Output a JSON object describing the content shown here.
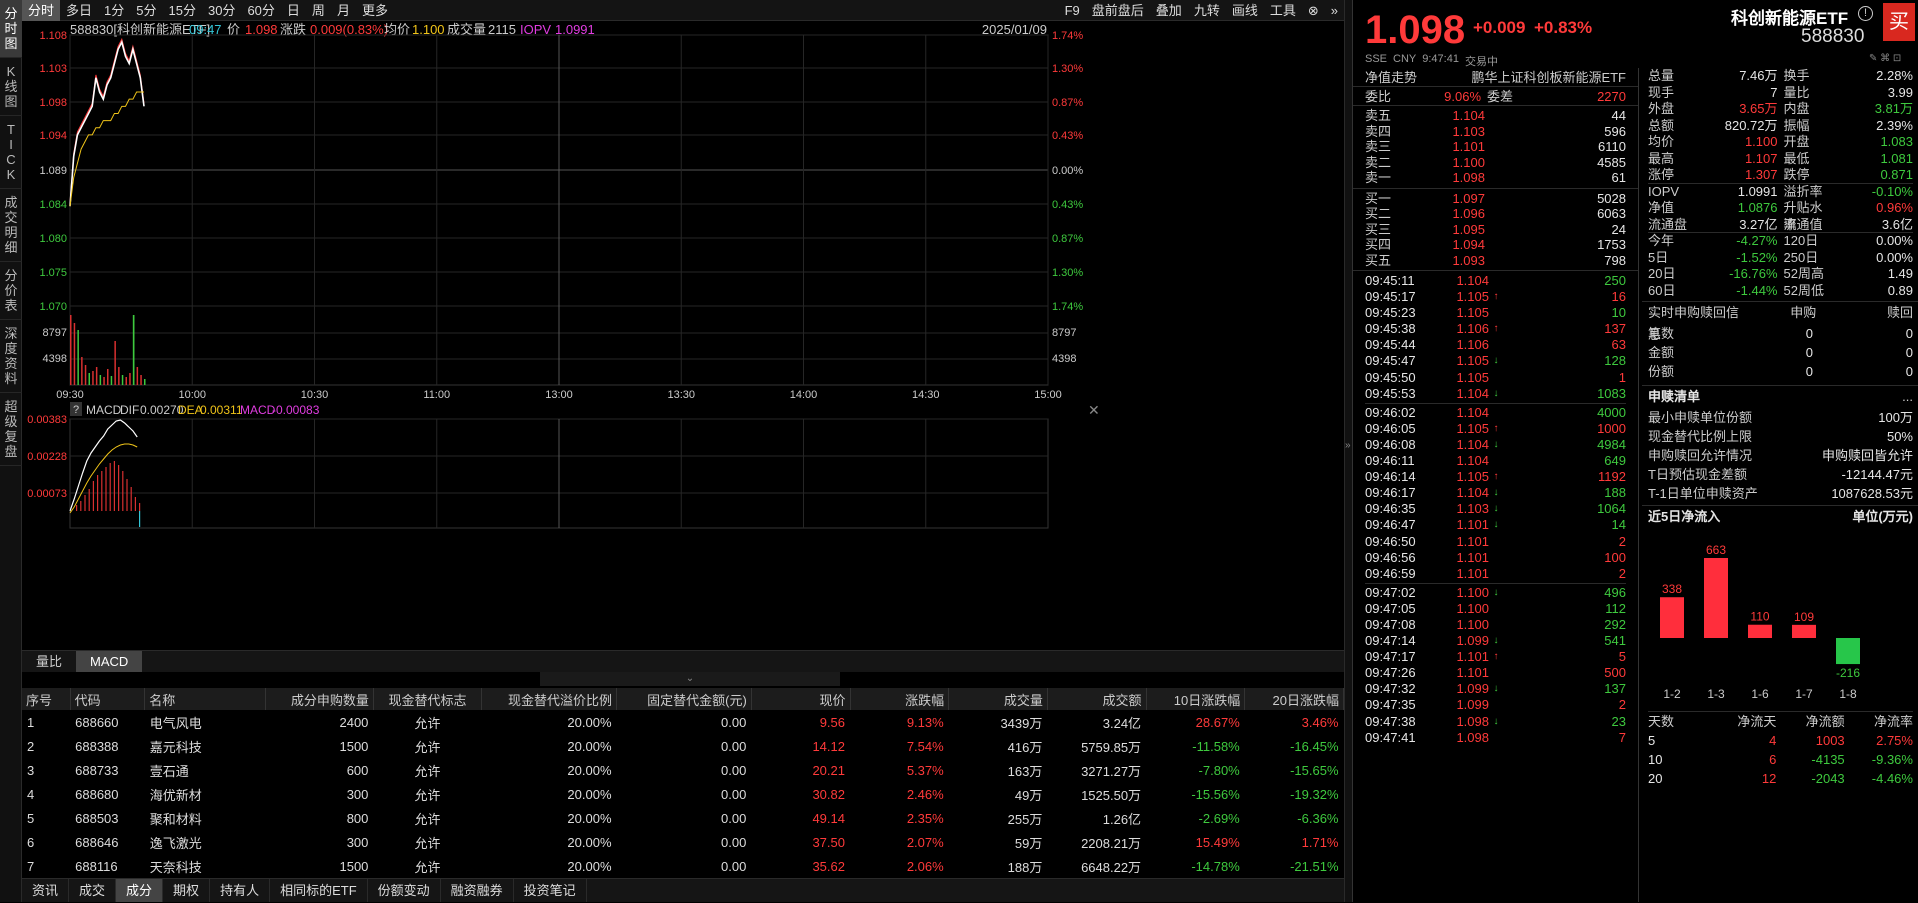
{
  "left_tabs": [
    {
      "label": "分时图",
      "active": true
    },
    {
      "label": "K线图"
    },
    {
      "label": "TICK"
    },
    {
      "label": "成交明细"
    },
    {
      "label": "分价表"
    },
    {
      "label": "深度资料"
    },
    {
      "label": "超级复盘"
    }
  ],
  "toolbar": {
    "periods": [
      "分时",
      "多日",
      "1分",
      "5分",
      "15分",
      "30分",
      "60分",
      "日",
      "周",
      "月",
      "更多"
    ],
    "right": [
      "F9",
      "盘前盘后",
      "叠加",
      "九转",
      "画线",
      "工具"
    ]
  },
  "info": {
    "code_name": "588830[科创新能源ETF]",
    "time": "09:47",
    "price_label": "价",
    "price": "1.098",
    "chg_label": "涨跌",
    "chg": "0.009(0.83%)",
    "avg_label": "均价",
    "avg": "1.100",
    "vol_label": "成交量",
    "vol": "2115",
    "iopv_label": "IOPV",
    "iopv": "1.0991",
    "date": "2025/01/09"
  },
  "chart": {
    "y_left": [
      "1.108",
      "1.103",
      "1.098",
      "1.094",
      "1.089",
      "1.084",
      "1.080",
      "1.075",
      "1.070"
    ],
    "y_right": [
      "1.74%",
      "1.30%",
      "0.87%",
      "0.43%",
      "0.00%",
      "0.43%",
      "0.87%",
      "1.30%",
      "1.74%"
    ],
    "vol_left": [
      "8797",
      "4398"
    ],
    "vol_right": [
      "8797",
      "4398"
    ],
    "x_labels": [
      "09:30",
      "10:00",
      "10:30",
      "11:00",
      "13:00",
      "13:30",
      "14:00",
      "14:30",
      "15:00"
    ],
    "price_series": [
      1.084,
      1.091,
      1.094,
      1.095,
      1.096,
      1.097,
      1.098,
      1.102,
      1.1,
      1.099,
      1.101,
      1.102,
      1.104,
      1.106,
      1.107,
      1.105,
      1.104,
      1.106,
      1.104,
      1.102,
      1.098
    ],
    "avg_series": [
      1.084,
      1.088,
      1.09,
      1.092,
      1.093,
      1.094,
      1.094,
      1.095,
      1.095,
      1.096,
      1.096,
      1.096,
      1.097,
      1.097,
      1.098,
      1.098,
      1.099,
      1.099,
      1.1,
      1.1,
      1.1
    ]
  },
  "macd": {
    "help": "?",
    "title": "MACD",
    "dif_label": "DIF",
    "dif": "0.00270",
    "dea_label": "DEA",
    "dea": "0.00311",
    "macd_label": "MACD",
    "macd": "-0.00083",
    "y": [
      "0.00383",
      "0.00228",
      "0.00073"
    ]
  },
  "sub_tabs": [
    "量比",
    "MACD"
  ],
  "table": {
    "headers": [
      "序号",
      "代码",
      "名称",
      "成分申购数量",
      "现金替代标志",
      "现金替代溢价比例",
      "固定替代金额(元)",
      "现价",
      "涨跌幅",
      "成交量",
      "成交额",
      "10日涨跌幅",
      "20日涨跌幅"
    ],
    "rows": [
      [
        "1",
        "688660",
        "电气风电",
        "2400",
        "允许",
        "20.00%",
        "0.00",
        "9.56",
        "9.13%",
        "3439万",
        "3.24亿",
        "28.67%",
        "3.46%"
      ],
      [
        "2",
        "688388",
        "嘉元科技",
        "1500",
        "允许",
        "20.00%",
        "0.00",
        "14.12",
        "7.54%",
        "416万",
        "5759.85万",
        "-11.58%",
        "-16.45%"
      ],
      [
        "3",
        "688733",
        "壹石通",
        "600",
        "允许",
        "20.00%",
        "0.00",
        "20.21",
        "5.37%",
        "163万",
        "3271.27万",
        "-7.80%",
        "-15.65%"
      ],
      [
        "4",
        "688680",
        "海优新材",
        "300",
        "允许",
        "20.00%",
        "0.00",
        "30.82",
        "2.46%",
        "49万",
        "1525.50万",
        "-15.56%",
        "-19.32%"
      ],
      [
        "5",
        "688503",
        "聚和材料",
        "800",
        "允许",
        "20.00%",
        "0.00",
        "49.14",
        "2.35%",
        "255万",
        "1.26亿",
        "-2.69%",
        "-6.36%"
      ],
      [
        "6",
        "688646",
        "逸飞激光",
        "300",
        "允许",
        "20.00%",
        "0.00",
        "37.50",
        "2.07%",
        "59万",
        "2208.21万",
        "15.49%",
        "1.71%"
      ],
      [
        "7",
        "688116",
        "天奈科技",
        "1500",
        "允许",
        "20.00%",
        "0.00",
        "35.62",
        "2.06%",
        "188万",
        "6648.22万",
        "-14.78%",
        "-21.51%"
      ]
    ]
  },
  "bottom_tabs": [
    "资讯",
    "成交",
    "成分",
    "期权",
    "持有人",
    "相同标的ETF",
    "份额变动",
    "融资融券",
    "投资笔记"
  ],
  "quote": {
    "price": "1.098",
    "chg": "+0.009",
    "pct": "+0.83%",
    "name": "科创新能源ETF",
    "code": "588830",
    "buy": "买",
    "exchange": "SSE",
    "currency": "CNY",
    "qtime": "9:47:41",
    "status": "交易中"
  },
  "nav_line": {
    "label": "净值走势",
    "fund": "鹏华上证科创板新能源ETF"
  },
  "order_ratio": {
    "wb_label": "委比",
    "wb": "9.06%",
    "wc_label": "委差",
    "wc": "2270"
  },
  "asks": [
    [
      "卖五",
      "1.104",
      "44"
    ],
    [
      "卖四",
      "1.103",
      "596"
    ],
    [
      "卖三",
      "1.101",
      "6110"
    ],
    [
      "卖二",
      "1.100",
      "4585"
    ],
    [
      "卖一",
      "1.098",
      "61"
    ]
  ],
  "bids": [
    [
      "买一",
      "1.097",
      "5028"
    ],
    [
      "买二",
      "1.096",
      "6063"
    ],
    [
      "买三",
      "1.095",
      "24"
    ],
    [
      "买四",
      "1.094",
      "1753"
    ],
    [
      "买五",
      "1.093",
      "798"
    ]
  ],
  "ticks": [
    [
      "09:45:11",
      "1.104",
      "",
      "250",
      "g"
    ],
    [
      "09:45:17",
      "1.105",
      "up",
      "16",
      "r"
    ],
    [
      "09:45:23",
      "1.105",
      "",
      "10",
      "g"
    ],
    [
      "09:45:38",
      "1.106",
      "up",
      "137",
      "r"
    ],
    [
      "09:45:44",
      "1.106",
      "",
      "63",
      "r"
    ],
    [
      "09:45:47",
      "1.105",
      "down",
      "128",
      "g"
    ],
    [
      "09:45:50",
      "1.105",
      "",
      "1",
      "r"
    ],
    [
      "09:45:53",
      "1.104",
      "down",
      "1083",
      "g"
    ],
    [
      "09:46:02",
      "1.104",
      "",
      "4000",
      "g"
    ],
    [
      "09:46:05",
      "1.105",
      "up",
      "1000",
      "r"
    ],
    [
      "09:46:08",
      "1.104",
      "down",
      "4984",
      "g"
    ],
    [
      "09:46:11",
      "1.104",
      "",
      "649",
      "g"
    ],
    [
      "09:46:14",
      "1.105",
      "up",
      "1192",
      "r"
    ],
    [
      "09:46:17",
      "1.104",
      "down",
      "188",
      "g"
    ],
    [
      "09:46:35",
      "1.103",
      "down",
      "1064",
      "g"
    ],
    [
      "09:46:47",
      "1.101",
      "down",
      "14",
      "g"
    ],
    [
      "09:46:50",
      "1.101",
      "",
      "2",
      "r"
    ],
    [
      "09:46:56",
      "1.101",
      "",
      "100",
      "r"
    ],
    [
      "09:46:59",
      "1.101",
      "",
      "2",
      "r"
    ],
    [
      "09:47:02",
      "1.100",
      "down",
      "496",
      "g"
    ],
    [
      "09:47:05",
      "1.100",
      "",
      "112",
      "g"
    ],
    [
      "09:47:08",
      "1.100",
      "",
      "292",
      "g"
    ],
    [
      "09:47:14",
      "1.099",
      "down",
      "541",
      "g"
    ],
    [
      "09:47:17",
      "1.101",
      "up",
      "5",
      "r"
    ],
    [
      "09:47:26",
      "1.101",
      "",
      "500",
      "r"
    ],
    [
      "09:47:32",
      "1.099",
      "down",
      "137",
      "g"
    ],
    [
      "09:47:35",
      "1.099",
      "",
      "2",
      "r"
    ],
    [
      "09:47:38",
      "1.098",
      "down",
      "23",
      "g"
    ],
    [
      "09:47:41",
      "1.098",
      "",
      "7",
      "r"
    ]
  ],
  "stats": [
    [
      [
        "总量",
        "7.46万",
        "w"
      ],
      [
        "换手",
        "2.28%",
        "w"
      ]
    ],
    [
      [
        "现手",
        "7",
        "w"
      ],
      [
        "量比",
        "3.99",
        "w"
      ]
    ],
    [
      [
        "外盘",
        "3.65万",
        "r"
      ],
      [
        "内盘",
        "3.81万",
        "g"
      ]
    ],
    [
      [
        "总额",
        "820.72万",
        "w"
      ],
      [
        "振幅",
        "2.39%",
        "w"
      ]
    ],
    [
      [
        "均价",
        "1.100",
        "r"
      ],
      [
        "开盘",
        "1.083",
        "g"
      ]
    ],
    [
      [
        "最高",
        "1.107",
        "r"
      ],
      [
        "最低",
        "1.081",
        "g"
      ]
    ],
    [
      [
        "涨停",
        "1.307",
        "r"
      ],
      [
        "跌停",
        "0.871",
        "g"
      ]
    ],
    [
      [
        "IOPV",
        "1.0991",
        "w"
      ],
      [
        "溢折率",
        "-0.10%",
        "g"
      ]
    ],
    [
      [
        "净值",
        "1.0876",
        "g"
      ],
      [
        "升贴水率",
        "0.96%",
        "r"
      ]
    ],
    [
      [
        "流通盘",
        "3.27亿",
        "w"
      ],
      [
        "流通值",
        "3.6亿",
        "w"
      ]
    ],
    [
      [
        "今年",
        "-4.27%",
        "g"
      ],
      [
        "120日",
        "0.00%",
        "w"
      ]
    ],
    [
      [
        "5日",
        "-1.52%",
        "g"
      ],
      [
        "250日",
        "0.00%",
        "w"
      ]
    ],
    [
      [
        "20日",
        "-16.76%",
        "g"
      ],
      [
        "52周高",
        "1.49",
        "w"
      ]
    ],
    [
      [
        "60日",
        "-1.44%",
        "g"
      ],
      [
        "52周低",
        "0.89",
        "w"
      ]
    ]
  ],
  "realtime": {
    "title": "实时申购赎回信息",
    "cols": [
      "申购",
      "赎回"
    ],
    "rows": [
      [
        "笔数",
        "0",
        "0"
      ],
      [
        "金额",
        "0",
        "0"
      ],
      [
        "份额",
        "0",
        "0"
      ]
    ]
  },
  "redeem": {
    "title": "申赎清单",
    "more": "...",
    "rows": [
      [
        "最小申赎单位份额",
        "100万"
      ],
      [
        "现金替代比例上限",
        "50%"
      ],
      [
        "申购赎回允许情况",
        "申购赎回皆允许"
      ],
      [
        "T日预估现金差额",
        "-12144.47元"
      ],
      [
        "T-1日单位申赎资产",
        "1087628.53元"
      ]
    ]
  },
  "inflow": {
    "title": "近5日净流入",
    "unit": "单位(万元)",
    "bars": [
      {
        "label": "1-2",
        "value": 338
      },
      {
        "label": "1-3",
        "value": 663
      },
      {
        "label": "1-6",
        "value": 110
      },
      {
        "label": "1-7",
        "value": 109
      },
      {
        "label": "1-8",
        "value": -216
      }
    ],
    "table_headers": [
      "天数",
      "净流天",
      "净流额",
      "净流率"
    ],
    "table_rows": [
      [
        "5",
        "4",
        "1003",
        "2.75%"
      ],
      [
        "10",
        "6",
        "-4135",
        "-9.36%"
      ],
      [
        "20",
        "12",
        "-2043",
        "-4.46%"
      ]
    ]
  },
  "colors": {
    "up": "#ff3a3a",
    "down": "#3ec93e",
    "avg": "#f0c419",
    "bg": "#000000"
  }
}
